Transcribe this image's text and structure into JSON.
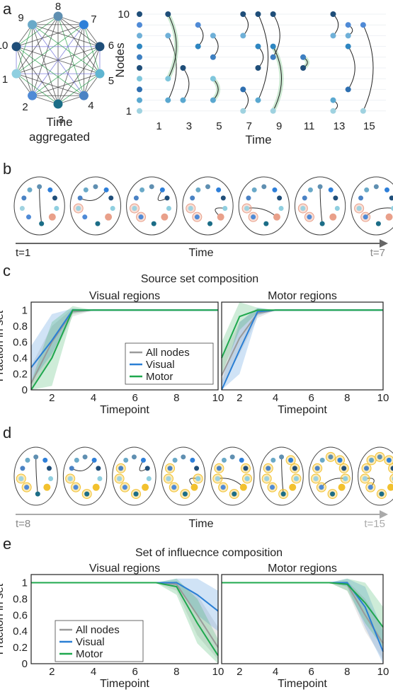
{
  "panel_a": {
    "letter": "a",
    "caption_line1": "Time",
    "caption_line2": "aggregated",
    "ring_labels": [
      "8",
      "7",
      "6",
      "5",
      "4",
      "3",
      "2",
      "1",
      "10",
      "9"
    ],
    "ylabel": "Nodes",
    "xlabel": "Time",
    "y_ticks": [
      "10",
      "1"
    ],
    "x_ticks": [
      "1",
      "3",
      "5",
      "7",
      "9",
      "11",
      "13",
      "15"
    ]
  },
  "panel_b": {
    "letter": "b",
    "timeline_start": "t=1",
    "timeline_mid": "Time",
    "timeline_end": "t=7"
  },
  "panel_d": {
    "letter": "d",
    "timeline_start": "t=8",
    "timeline_mid": "Time",
    "timeline_end": "t=15"
  },
  "colors": {
    "visual": "#2a7fd4",
    "motor": "#1fa84e",
    "all": "#9a9a9a",
    "node_dark": "#1f4e79",
    "node_mid": "#3d7fc1",
    "node_light": "#7fc6dc",
    "source_highlight": "#e9a08a",
    "influence_highlight": "#f2c12e"
  },
  "chart_data": [
    {
      "panel_letter": "c",
      "suptitle": "Source set composition",
      "title": "Visual regions",
      "type": "line",
      "xlabel": "Timepoint",
      "ylabel": "Fraction in set",
      "xlim": [
        1,
        10
      ],
      "ylim": [
        0,
        1.1
      ],
      "x_ticks": [
        "2",
        "4",
        "6",
        "8",
        "10"
      ],
      "y_ticks": [
        "0",
        "0.2",
        "0.4",
        "0.6",
        "0.8",
        "1"
      ],
      "legend": [
        "All nodes",
        "Visual",
        "Motor"
      ],
      "legend_position": "lower-right",
      "x": [
        1,
        2,
        3,
        4,
        5,
        6,
        7,
        8,
        9,
        10
      ],
      "series": [
        {
          "name": "All nodes",
          "values": [
            0.08,
            0.6,
            0.98,
            1,
            1,
            1,
            1,
            1,
            1,
            1
          ],
          "lo": [
            0.0,
            0.4,
            0.92,
            1,
            1,
            1,
            1,
            1,
            1,
            1
          ],
          "hi": [
            0.3,
            0.8,
            1.02,
            1,
            1,
            1,
            1,
            1,
            1,
            1
          ]
        },
        {
          "name": "Visual",
          "values": [
            0.28,
            0.62,
            1,
            1,
            1,
            1,
            1,
            1,
            1,
            1
          ],
          "lo": [
            0.1,
            0.45,
            0.97,
            1,
            1,
            1,
            1,
            1,
            1,
            1
          ],
          "hi": [
            0.55,
            0.95,
            1.02,
            1,
            1,
            1,
            1,
            1,
            1,
            1
          ]
        },
        {
          "name": "Motor",
          "values": [
            0.0,
            0.4,
            1,
            1,
            1,
            1,
            1,
            1,
            1,
            1
          ],
          "lo": [
            0.0,
            0.05,
            0.95,
            1,
            1,
            1,
            1,
            1,
            1,
            1
          ],
          "hi": [
            0.1,
            0.85,
            1.05,
            1,
            1,
            1,
            1,
            1,
            1,
            1
          ]
        }
      ]
    },
    {
      "title": "Motor regions",
      "type": "line",
      "xlabel": "Timepoint",
      "xlim": [
        1,
        10
      ],
      "ylim": [
        0,
        1.1
      ],
      "x_ticks": [
        "2",
        "4",
        "6",
        "8",
        "10"
      ],
      "x": [
        1,
        2,
        3,
        4,
        5,
        6,
        7,
        8,
        9,
        10
      ],
      "series": [
        {
          "name": "All nodes",
          "values": [
            0.18,
            0.65,
            0.96,
            1,
            1,
            1,
            1,
            1,
            1,
            1
          ],
          "lo": [
            0.05,
            0.45,
            0.9,
            1,
            1,
            1,
            1,
            1,
            1,
            1
          ],
          "hi": [
            0.4,
            0.85,
            1.02,
            1,
            1,
            1,
            1,
            1,
            1,
            1
          ]
        },
        {
          "name": "Visual",
          "values": [
            0.0,
            0.5,
            0.98,
            1,
            1,
            1,
            1,
            1,
            1,
            1
          ],
          "lo": [
            0.0,
            0.2,
            0.93,
            1,
            1,
            1,
            1,
            1,
            1,
            1
          ],
          "hi": [
            0.1,
            0.85,
            1.03,
            1,
            1,
            1,
            1,
            1,
            1,
            1
          ]
        },
        {
          "name": "Motor",
          "values": [
            0.4,
            0.92,
            1,
            1,
            1,
            1,
            1,
            1,
            1,
            1
          ],
          "lo": [
            0.2,
            0.75,
            0.97,
            1,
            1,
            1,
            1,
            1,
            1,
            1
          ],
          "hi": [
            0.6,
            1.1,
            1.03,
            1,
            1,
            1,
            1,
            1,
            1,
            1
          ]
        }
      ]
    },
    {
      "panel_letter": "e",
      "suptitle": "Set of influecnce composition",
      "title": "Visual regions",
      "type": "line",
      "xlabel": "Timepoint",
      "ylabel": "Fraction in set",
      "xlim": [
        1,
        10
      ],
      "ylim": [
        0,
        1.1
      ],
      "x_ticks": [
        "2",
        "4",
        "6",
        "8",
        "10"
      ],
      "y_ticks": [
        "0",
        "0.2",
        "0.4",
        "0.6",
        "0.8",
        "1"
      ],
      "legend": [
        "All nodes",
        "Visual",
        "Motor"
      ],
      "legend_position": "lower-left",
      "x": [
        1,
        2,
        3,
        4,
        5,
        6,
        7,
        8,
        9,
        10
      ],
      "series": [
        {
          "name": "All nodes",
          "values": [
            1,
            1,
            1,
            1,
            1,
            1,
            1,
            0.98,
            0.6,
            0.2
          ],
          "lo": [
            1,
            1,
            1,
            1,
            1,
            1,
            1,
            0.9,
            0.35,
            0.05
          ],
          "hi": [
            1,
            1,
            1,
            1,
            1,
            1,
            1,
            1.02,
            0.85,
            0.45
          ]
        },
        {
          "name": "Visual",
          "values": [
            1,
            1,
            1,
            1,
            1,
            1,
            1,
            1,
            0.85,
            0.65
          ],
          "lo": [
            1,
            1,
            1,
            1,
            1,
            1,
            1,
            0.95,
            0.6,
            0.4
          ],
          "hi": [
            1,
            1,
            1,
            1,
            1,
            1,
            1,
            1.05,
            1.05,
            0.9
          ]
        },
        {
          "name": "Motor",
          "values": [
            1,
            1,
            1,
            1,
            1,
            1,
            1,
            0.95,
            0.5,
            0.1
          ],
          "lo": [
            1,
            1,
            1,
            1,
            1,
            1,
            1,
            0.85,
            0.25,
            0.0
          ],
          "hi": [
            1,
            1,
            1,
            1,
            1,
            1,
            1,
            1.05,
            0.8,
            0.3
          ]
        }
      ]
    },
    {
      "title": "Motor regions",
      "type": "line",
      "xlabel": "Timepoint",
      "xlim": [
        1,
        10
      ],
      "ylim": [
        0,
        1.1
      ],
      "x_ticks": [
        "2",
        "4",
        "6",
        "8",
        "10"
      ],
      "x": [
        1,
        2,
        3,
        4,
        5,
        6,
        7,
        8,
        9,
        10
      ],
      "series": [
        {
          "name": "All nodes",
          "values": [
            1,
            1,
            1,
            1,
            1,
            1,
            1,
            0.98,
            0.6,
            0.25
          ],
          "lo": [
            1,
            1,
            1,
            1,
            1,
            1,
            1,
            0.9,
            0.4,
            0.05
          ],
          "hi": [
            1,
            1,
            1,
            1,
            1,
            1,
            1,
            1.02,
            0.8,
            0.45
          ]
        },
        {
          "name": "Visual",
          "values": [
            1,
            1,
            1,
            1,
            1,
            1,
            1,
            1,
            0.7,
            0.15
          ],
          "lo": [
            1,
            1,
            1,
            1,
            1,
            1,
            1,
            0.95,
            0.45,
            0.0
          ],
          "hi": [
            1,
            1,
            1,
            1,
            1,
            1,
            1,
            1.05,
            0.95,
            0.4
          ]
        },
        {
          "name": "Motor",
          "values": [
            1,
            1,
            1,
            1,
            1,
            1,
            1,
            0.98,
            0.75,
            0.45
          ],
          "lo": [
            1,
            1,
            1,
            1,
            1,
            1,
            1,
            0.9,
            0.5,
            0.2
          ],
          "hi": [
            1,
            1,
            1,
            1,
            1,
            1,
            1,
            1.05,
            1.0,
            0.7
          ]
        }
      ]
    }
  ]
}
